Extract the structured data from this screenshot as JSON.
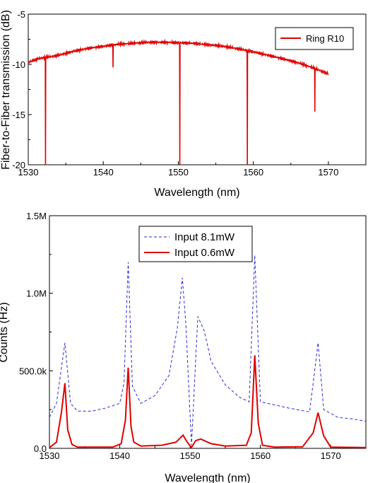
{
  "chart_data": [
    {
      "type": "line",
      "xlabel": "Wavelength (nm)",
      "ylabel": "Fiber-to-Fiber transmission (dB)",
      "xlim": [
        1530,
        1575
      ],
      "ylim": [
        -20,
        -5
      ],
      "xticks": [
        1530,
        1540,
        1550,
        1560,
        1570
      ],
      "xtick_labels": [
        "1530",
        "1540",
        "1550",
        "1560",
        "1570"
      ],
      "yticks": [
        -20,
        -15,
        -10,
        -5
      ],
      "ytick_labels": [
        "-20",
        "-15",
        "-10",
        "-5"
      ],
      "grid": false,
      "legend_position": "top-right",
      "series": [
        {
          "name": "Ring R10",
          "color": "#e00000",
          "style": "solid",
          "baseline": [
            [
              1530.0,
              -9.8
            ],
            [
              1531.5,
              -9.4
            ],
            [
              1532.5,
              -9.3
            ],
            [
              1534.0,
              -9.1
            ],
            [
              1536.0,
              -8.7
            ],
            [
              1538.0,
              -8.4
            ],
            [
              1540.0,
              -8.2
            ],
            [
              1542.0,
              -8.0
            ],
            [
              1544.0,
              -7.9
            ],
            [
              1546.0,
              -7.8
            ],
            [
              1548.0,
              -7.8
            ],
            [
              1550.0,
              -7.85
            ],
            [
              1552.0,
              -7.9
            ],
            [
              1554.0,
              -8.05
            ],
            [
              1556.0,
              -8.2
            ],
            [
              1558.0,
              -8.45
            ],
            [
              1560.0,
              -8.75
            ],
            [
              1562.0,
              -9.1
            ],
            [
              1564.0,
              -9.45
            ],
            [
              1566.0,
              -9.85
            ],
            [
              1568.0,
              -10.35
            ],
            [
              1569.0,
              -10.65
            ],
            [
              1570.0,
              -10.95
            ]
          ],
          "dips": [
            {
              "x": 1532.3,
              "y": -20.0
            },
            {
              "x": 1541.3,
              "y": -10.3
            },
            {
              "x": 1550.2,
              "y": -20.0
            },
            {
              "x": 1559.2,
              "y": -20.0
            },
            {
              "x": 1568.2,
              "y": -14.7
            }
          ]
        }
      ]
    },
    {
      "type": "line",
      "xlabel": "Wavelength (nm)",
      "ylabel": "Counts (Hz)",
      "xlim": [
        1530,
        1575
      ],
      "ylim": [
        0,
        1500000
      ],
      "xticks": [
        1530,
        1540,
        1550,
        1560,
        1570
      ],
      "xtick_labels": [
        "1530",
        "1540",
        "1550",
        "1560",
        "1570"
      ],
      "yticks": [
        0,
        500000,
        1000000,
        1500000
      ],
      "ytick_labels": [
        "0.0",
        "500.0k",
        "1.0M",
        "1.5M"
      ],
      "grid": false,
      "legend_position": "top-center",
      "series": [
        {
          "name": "Input 8.1mW",
          "color": "#2a2ae0",
          "style": "dashed",
          "x": [
            1530,
            1531,
            1532.2,
            1533,
            1534,
            1536,
            1538,
            1540,
            1540.6,
            1541.2,
            1541.8,
            1543,
            1545,
            1547,
            1548.2,
            1548.9,
            1549.4,
            1550.2,
            1551.1,
            1552,
            1553,
            1555,
            1557,
            1558.4,
            1559.2,
            1560,
            1562,
            1564,
            1567,
            1568.2,
            1569,
            1571,
            1573,
            1575
          ],
          "y": [
            200000,
            290000,
            680000,
            290000,
            240000,
            240000,
            260000,
            290000,
            420000,
            1200000,
            400000,
            290000,
            340000,
            470000,
            780000,
            1100000,
            800000,
            20000,
            850000,
            760000,
            560000,
            410000,
            330000,
            300000,
            1245000,
            300000,
            280000,
            260000,
            235000,
            680000,
            250000,
            200000,
            190000,
            175000
          ]
        },
        {
          "name": "Input 0.6mW",
          "color": "#e00000",
          "style": "solid",
          "x": [
            1530,
            1531,
            1531.7,
            1532.2,
            1532.6,
            1533.2,
            1534,
            1539,
            1540.2,
            1540.8,
            1541.2,
            1541.6,
            1542,
            1543,
            1546,
            1548,
            1549,
            1549.6,
            1550.2,
            1550.8,
            1551.5,
            1553,
            1555,
            1558,
            1558.7,
            1559.2,
            1559.7,
            1560.3,
            1562,
            1566,
            1567.5,
            1568.2,
            1569,
            1570,
            1575
          ],
          "y": [
            5000,
            40000,
            230000,
            420000,
            120000,
            25000,
            8000,
            8000,
            30000,
            180000,
            520000,
            140000,
            40000,
            15000,
            20000,
            40000,
            85000,
            40000,
            5000,
            50000,
            60000,
            30000,
            15000,
            20000,
            100000,
            600000,
            160000,
            20000,
            8000,
            10000,
            100000,
            230000,
            80000,
            8000,
            5000
          ]
        }
      ]
    }
  ]
}
